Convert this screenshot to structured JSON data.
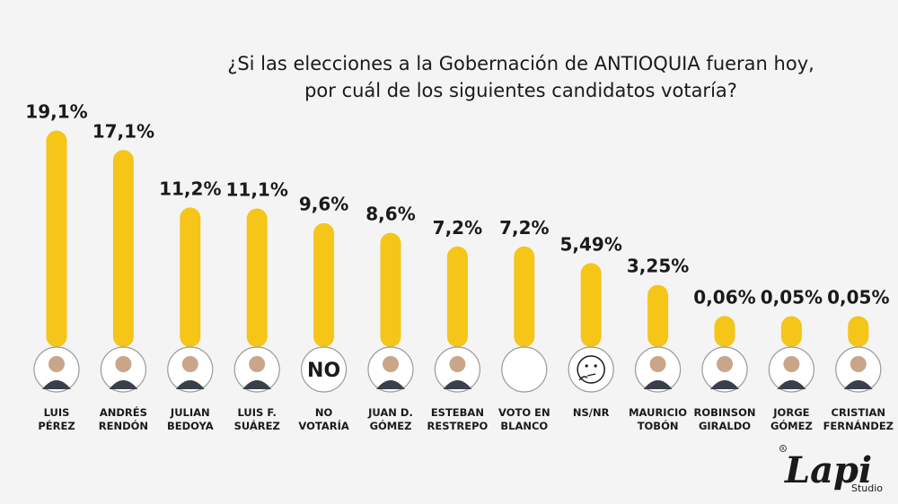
{
  "title_line1": "¿Si las elecciones a la Gobernación de ANTIOQUIA fueran hoy,",
  "title_line2": "por cuál de los siguientes candidatos votaría?",
  "colors": {
    "bar": "#f5c518",
    "background": "#f4f4f4",
    "text": "#1a1a1a"
  },
  "chart_data": {
    "type": "bar",
    "title": "¿Si las elecciones a la Gobernación de ANTIOQUIA fueran hoy, por cuál de los siguientes candidatos votaría?",
    "categories": [
      [
        "LUIS",
        "PÉREZ"
      ],
      [
        "ANDRÉS",
        "RENDÓN"
      ],
      [
        "JULIAN",
        "BEDOYA"
      ],
      [
        "LUIS F.",
        "SUÁREZ"
      ],
      [
        "NO",
        "VOTARÍA"
      ],
      [
        "JUAN D.",
        "GÓMEZ"
      ],
      [
        "ESTEBAN",
        "RESTREPO"
      ],
      [
        "VOTO EN",
        "BLANCO"
      ],
      [
        "NS/NR"
      ],
      [
        "MAURICIO",
        "TOBÓN"
      ],
      [
        "ROBINSON",
        "GIRALDO"
      ],
      [
        "JORGE",
        "GÓMEZ"
      ],
      [
        "CRISTIAN",
        "FERNÁNDEZ"
      ]
    ],
    "values": [
      19.1,
      17.1,
      11.2,
      11.1,
      9.6,
      8.6,
      7.2,
      7.2,
      5.49,
      3.25,
      0.06,
      0.05,
      0.05
    ],
    "value_labels": [
      "19,1%",
      "17,1%",
      "11,2%",
      "11,1%",
      "9,6%",
      "8,6%",
      "7,2%",
      "7,2%",
      "5,49%",
      "3,25%",
      "0,06%",
      "0,05%",
      "0,05%"
    ],
    "avatars": [
      "photo",
      "photo",
      "photo",
      "photo",
      "text-NO",
      "photo",
      "photo",
      "blank",
      "thinking-emoji",
      "photo",
      "photo",
      "photo",
      "photo"
    ],
    "avatar_text": "NO",
    "xlabel": "",
    "ylabel": "",
    "grid": false,
    "legend": "none"
  },
  "brand": {
    "logo_text": "Lapi",
    "logo_suffix": "Studio"
  }
}
